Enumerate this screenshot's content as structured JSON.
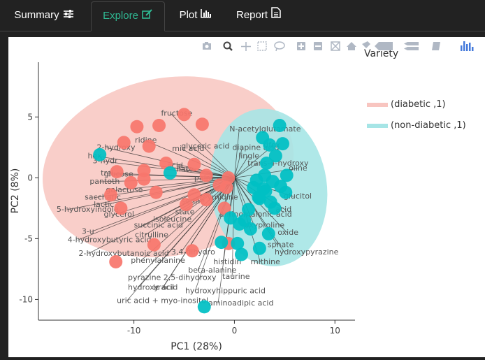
{
  "tabs": [
    {
      "label": "Summary",
      "icon": "sliders-icon"
    },
    {
      "label": "Explore",
      "icon": "edit-icon",
      "active": true
    },
    {
      "label": "Plot",
      "icon": "bar-chart-icon"
    },
    {
      "label": "Report",
      "icon": "document-icon"
    }
  ],
  "modebar": [
    "camera-icon",
    "zoom-icon",
    "pan-icon",
    "box-select-icon",
    "lasso-icon",
    "zoom-in-icon",
    "zoom-out-icon",
    "autoscale-icon",
    "reset-axes-icon",
    "spike-lines-icon",
    "hover-closest-icon",
    "hover-compare-icon",
    "toggle-hover-icon",
    "plotly-logo-icon"
  ],
  "colors": {
    "diabetic": "#f8766d",
    "nondiabetic": "#00bfc4",
    "diabetic_ellipse": "#f8c5c0",
    "nondiabetic_ellipse": "#a6e5e6"
  },
  "chart_data": {
    "type": "scatter",
    "xlabel": "PC1 (28%)",
    "ylabel": "PC2 (8%)",
    "xlim": [
      -19.5,
      12
    ],
    "ylim": [
      -11.7,
      9.5
    ],
    "xticks": [
      -10,
      0,
      10
    ],
    "yticks": [
      5,
      0,
      -5,
      -10
    ],
    "grid": false,
    "legend_title": "Variety",
    "legend_placement": "right",
    "series": [
      {
        "name": "(diabetic ,1)",
        "color": "#f8766d",
        "points": [
          [
            -5,
            5.2
          ],
          [
            -3.2,
            4.4
          ],
          [
            -7.5,
            4.3
          ],
          [
            -9.7,
            4.2
          ],
          [
            -11,
            2.9
          ],
          [
            -8.5,
            2.6
          ],
          [
            -6.8,
            1.2
          ],
          [
            -4,
            1.1
          ],
          [
            -9,
            0.6
          ],
          [
            -11.7,
            0.5
          ],
          [
            -9,
            -0.1
          ],
          [
            -2.8,
            0.2
          ],
          [
            -1.5,
            -0.6
          ],
          [
            -0.6,
            0
          ],
          [
            -0.8,
            -0.8
          ],
          [
            -10.3,
            -0.4
          ],
          [
            -11.3,
            -2.5
          ],
          [
            -4.8,
            -2.2
          ],
          [
            -4,
            -1.4
          ],
          [
            -1,
            -2.5
          ],
          [
            -4.2,
            -6
          ],
          [
            -11.8,
            -6.9
          ],
          [
            -8,
            -5.5
          ],
          [
            -0.6,
            -5.4
          ],
          [
            -2.8,
            -1.8
          ],
          [
            -7.8,
            -1.2
          ],
          [
            -12.3,
            -1.4
          ]
        ]
      },
      {
        "name": "(non-diabetic ,1)",
        "color": "#00bfc4",
        "points": [
          [
            -13.4,
            1.9
          ],
          [
            -6.4,
            0.4
          ],
          [
            4.5,
            4.3
          ],
          [
            2.8,
            3.3
          ],
          [
            3.5,
            2.7
          ],
          [
            4.8,
            2.8
          ],
          [
            3.2,
            1.2
          ],
          [
            4.1,
            1.8
          ],
          [
            5.2,
            0.2
          ],
          [
            4.6,
            -0.7
          ],
          [
            3.1,
            -1.1
          ],
          [
            3.6,
            -2
          ],
          [
            2.4,
            -1.6
          ],
          [
            1.9,
            -0.8
          ],
          [
            2.5,
            -1.7
          ],
          [
            5.1,
            -1.2
          ],
          [
            3.8,
            -0.3
          ],
          [
            3,
            0.2
          ],
          [
            2.2,
            -0.2
          ],
          [
            1.4,
            -2.6
          ],
          [
            1,
            -3.5
          ],
          [
            0.5,
            -3.8
          ],
          [
            -0.4,
            -3.3
          ],
          [
            0.3,
            -5.4
          ],
          [
            -1.3,
            -5.3
          ],
          [
            0.7,
            -6.3
          ],
          [
            2.5,
            -5.8
          ],
          [
            3.4,
            -4.6
          ],
          [
            1.6,
            -4.2
          ],
          [
            4,
            -2.5
          ],
          [
            -3,
            -10.6
          ],
          [
            2.9,
            -0.9
          ]
        ]
      }
    ],
    "ellipses": [
      {
        "series": "(diabetic ,1)",
        "cx": -6.6,
        "cy": 0.9,
        "rx": 12.6,
        "ry": 7.3,
        "angle": -11
      },
      {
        "series": "(non-diabetic ,1)",
        "cx": 3.4,
        "cy": -0.8,
        "rx": 5.8,
        "ry": 6.5,
        "angle": -8
      }
    ],
    "loadings": [
      {
        "label": "fructose",
        "x": -7.3,
        "y": 5.1
      },
      {
        "label": "N-acetylglutamate",
        "x": -0.5,
        "y": 3.8
      },
      {
        "label": "2-hydroxy",
        "x": -13.7,
        "y": 2.3
      },
      {
        "label": "glyceric acid",
        "x": -5.3,
        "y": 2.4
      },
      {
        "label": "ridine",
        "x": -9.9,
        "y": 2.9
      },
      {
        "label": "mic acid",
        "x": -6.2,
        "y": 2.2
      },
      {
        "label": "diapine acid",
        "x": -0.2,
        "y": 2.3
      },
      {
        "label": "dfox",
        "x": 2.9,
        "y": 2.5
      },
      {
        "label": "lingle",
        "x": 0.4,
        "y": 1.6
      },
      {
        "label": "trans-4-hydroxy",
        "x": 1.3,
        "y": 1
      },
      {
        "label": "oline",
        "x": 5.4,
        "y": 0.6
      },
      {
        "label": "3-hydr",
        "x": -14.1,
        "y": 1.2
      },
      {
        "label": "hex",
        "x": -14.6,
        "y": 1.6
      },
      {
        "label": "glucose",
        "x": -13,
        "y": 0.1
      },
      {
        "label": "acid",
        "x": -6.7,
        "y": 0.8
      },
      {
        "label": "nate",
        "x": -5.8,
        "y": 0.5
      },
      {
        "label": "pantoth",
        "x": -14.4,
        "y": -0.5
      },
      {
        "label": "palm",
        "x": -4,
        "y": -0.2
      },
      {
        "label": "trei",
        "x": -13.3,
        "y": 0.2
      },
      {
        "label": "galactose",
        "x": -12.8,
        "y": -1.2
      },
      {
        "label": "saccharic",
        "x": -14.9,
        "y": -1.8
      },
      {
        "label": "lactic",
        "x": -14,
        "y": -2.4
      },
      {
        "label": "5-hydroxyindole",
        "x": -17.7,
        "y": -2.8
      },
      {
        "label": "glycerol",
        "x": -13,
        "y": -3.2
      },
      {
        "label": "serine",
        "x": -5.3,
        "y": -2.1
      },
      {
        "label": "state",
        "x": -5.9,
        "y": -3
      },
      {
        "label": "ymidine",
        "x": -2.7,
        "y": -1.8
      },
      {
        "label": "aminomalonic acid",
        "x": -1.5,
        "y": -3.2
      },
      {
        "label": "isoleucine",
        "x": -8.1,
        "y": -3.6
      },
      {
        "label": "succinic acid",
        "x": -10,
        "y": -4.1
      },
      {
        "label": "3-u",
        "x": -15.2,
        "y": -4.6
      },
      {
        "label": "4-hydroxybutyric acid",
        "x": -16.6,
        "y": -5.3
      },
      {
        "label": "2-hydroxybutanoic acid",
        "x": -15.5,
        "y": -6.4
      },
      {
        "label": "phenylalanine",
        "x": -10.3,
        "y": -7
      },
      {
        "label": "citrulline",
        "x": -9.9,
        "y": -4.9
      },
      {
        "label": "3,4-dihydro",
        "x": -6.3,
        "y": -6.3
      },
      {
        "label": "oxyproline",
        "x": 1,
        "y": -4.1
      },
      {
        "label": "oxide",
        "x": 4.3,
        "y": -4.7
      },
      {
        "label": "sphate",
        "x": 3.3,
        "y": -5.7
      },
      {
        "label": "hydroxypyrazine",
        "x": 4,
        "y": -6.3
      },
      {
        "label": "rnithine",
        "x": 1.6,
        "y": -7.1
      },
      {
        "label": "histidin",
        "x": -2.1,
        "y": -7.1
      },
      {
        "label": "beta-alanine",
        "x": -4.6,
        "y": -7.8
      },
      {
        "label": "taurine",
        "x": -1.2,
        "y": -8.3
      },
      {
        "label": "pyrazine 2,5-dihydroxy",
        "x": -10.6,
        "y": -8.4
      },
      {
        "label": "hydroxy",
        "x": -10.6,
        "y": -9.2
      },
      {
        "label": "ic acid",
        "x": -8.1,
        "y": -9.2
      },
      {
        "label": "uracil",
        "x": -8.1,
        "y": -9.2
      },
      {
        "label": "hydroxyhippuric acid",
        "x": -4.9,
        "y": -9.5
      },
      {
        "label": "uric acid + myo-inositol",
        "x": -11.7,
        "y": -10.3
      },
      {
        "label": "aminoadipic acid",
        "x": -2.6,
        "y": -10.5
      },
      {
        "label": "glucitol",
        "x": 4.9,
        "y": -1.7
      },
      {
        "label": "acid",
        "x": 4.1,
        "y": -2.8
      }
    ]
  }
}
